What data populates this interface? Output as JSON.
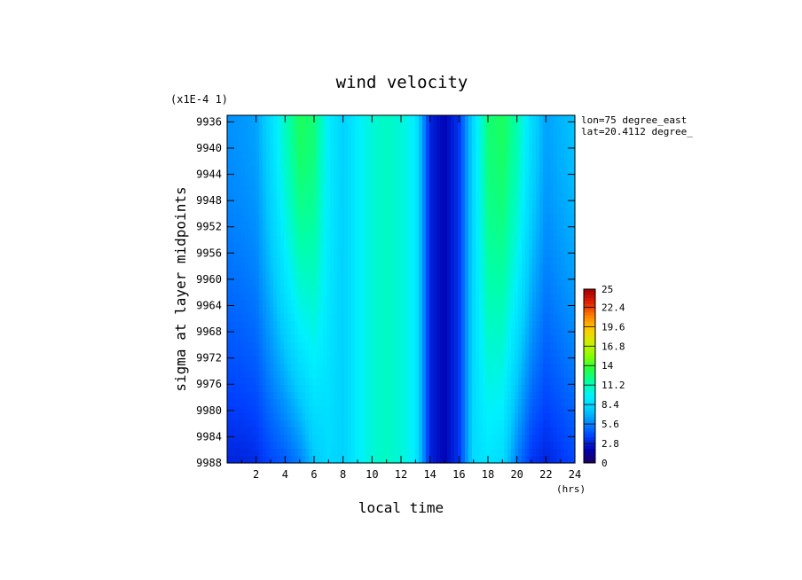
{
  "chart_data": {
    "type": "heatmap",
    "title": "wind velocity",
    "xlabel": "local time",
    "x_units": "(hrs)",
    "ylabel": "sigma at layer midpoints",
    "y_multiplier": "(x1E-4 1)",
    "annotations": [
      "lon=75 degree_east",
      "lat=20.4112 degree_"
    ],
    "x_ticks": [
      "2",
      "4",
      "6",
      "8",
      "10",
      "12",
      "14",
      "16",
      "18",
      "20",
      "22",
      "24"
    ],
    "y_ticks": [
      "9936",
      "9940",
      "9944",
      "9948",
      "9952",
      "9956",
      "9960",
      "9964",
      "9968",
      "9972",
      "9976",
      "9980",
      "9984",
      "9988"
    ],
    "xlim": [
      0,
      24
    ],
    "ylim": [
      9988,
      9935
    ],
    "colorbar": {
      "min": 0,
      "max": 25,
      "tick_labels": [
        "25",
        "22.4",
        "19.6",
        "16.8",
        "14",
        "11.2",
        "8.4",
        "5.6",
        "2.8",
        "0"
      ],
      "tick_values": [
        25,
        22.4,
        19.6,
        16.8,
        14,
        11.2,
        8.4,
        5.6,
        2.8,
        0
      ]
    },
    "x_hours": [
      0,
      1,
      2,
      3,
      4,
      5,
      6,
      7,
      8,
      9,
      10,
      11,
      12,
      13,
      14,
      15,
      16,
      17,
      18,
      19,
      20,
      21,
      22,
      23,
      24
    ],
    "top_profile": [
      6.0,
      6.2,
      6.5,
      8.5,
      11,
      13,
      12.5,
      9.5,
      8,
      9.5,
      10.5,
      11,
      10.5,
      9.5,
      3,
      2,
      3.5,
      8.5,
      12.5,
      13,
      11.5,
      8.5,
      6.5,
      7,
      7.5
    ],
    "bottom_profile": [
      3.0,
      3.0,
      3.2,
      4.0,
      4.5,
      5.5,
      7.5,
      8.5,
      8,
      9.5,
      10.5,
      11,
      10.5,
      9.5,
      3,
      2,
      3.5,
      8.5,
      9,
      8.5,
      5.5,
      3.5,
      3.0,
      3.5,
      4.0
    ]
  },
  "colormap": [
    "#1a0060",
    "#0000b0",
    "#0040ff",
    "#0088ff",
    "#00ccff",
    "#00f0ff",
    "#00ffaa",
    "#22ff44",
    "#88ff00",
    "#ccee00",
    "#ffcc00",
    "#ff8000",
    "#e02000",
    "#a00000"
  ]
}
